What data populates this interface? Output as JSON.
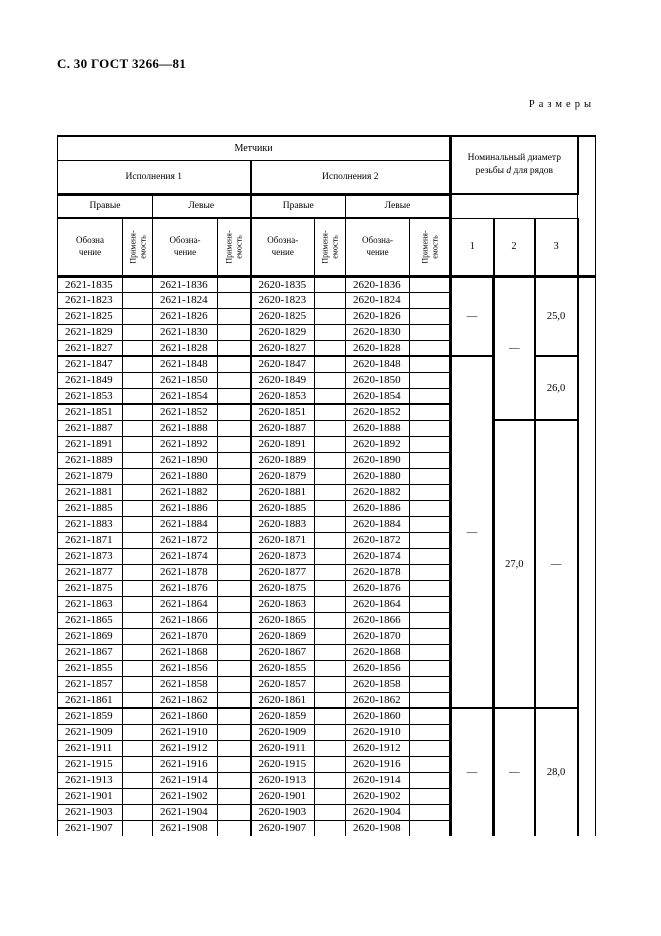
{
  "page": {
    "header": "С. 30 ГОСТ 3266—81",
    "sizes_label": "Размеры"
  },
  "table": {
    "header": {
      "metchiki": "Метчики",
      "ispolneniya_1": "Исполнения 1",
      "ispolneniya_2": "Исполнения 2",
      "pravye": "Правые",
      "levye": "Левые",
      "oboznachenie_first": "Обозна\nчение",
      "oboznachenie": "Обозна-\nчение",
      "primenyaemost": "Применя-\nемость",
      "nominal_prefix": "Номинальный диаметр резьбы ",
      "nominal_d": "d",
      "nominal_suffix": " для рядов",
      "row_numbers": [
        "1",
        "2",
        "3"
      ]
    },
    "rows": [
      [
        "2621-1835",
        "2621-1836",
        "2620-1835",
        "2620-1836"
      ],
      [
        "2621-1823",
        "2621-1824",
        "2620-1823",
        "2620-1824"
      ],
      [
        "2621-1825",
        "2621-1826",
        "2620-1825",
        "2620-1826"
      ],
      [
        "2621-1829",
        "2621-1830",
        "2620-1829",
        "2620-1830"
      ],
      [
        "2621-1827",
        "2621-1828",
        "2620-1827",
        "2620-1828"
      ],
      [
        "2621-1847",
        "2621-1848",
        "2620-1847",
        "2620-1848"
      ],
      [
        "2621-1849",
        "2621-1850",
        "2620-1849",
        "2620-1850"
      ],
      [
        "2621-1853",
        "2621-1854",
        "2620-1853",
        "2620-1854"
      ],
      [
        "2621-1851",
        "2621-1852",
        "2620-1851",
        "2620-1852"
      ],
      [
        "2621-1887",
        "2621-1888",
        "2620-1887",
        "2620-1888"
      ],
      [
        "2621-1891",
        "2621-1892",
        "2620-1891",
        "2620-1892"
      ],
      [
        "2621-1889",
        "2621-1890",
        "2620-1889",
        "2620-1890"
      ],
      [
        "2621-1879",
        "2621-1880",
        "2620-1879",
        "2620-1880"
      ],
      [
        "2621-1881",
        "2621-1882",
        "2620-1881",
        "2620-1882"
      ],
      [
        "2621-1885",
        "2621-1886",
        "2620-1885",
        "2620-1886"
      ],
      [
        "2621-1883",
        "2621-1884",
        "2620-1883",
        "2620-1884"
      ],
      [
        "2621-1871",
        "2621-1872",
        "2620-1871",
        "2620-1872"
      ],
      [
        "2621-1873",
        "2621-1874",
        "2620-1873",
        "2620-1874"
      ],
      [
        "2621-1877",
        "2621-1878",
        "2620-1877",
        "2620-1878"
      ],
      [
        "2621-1875",
        "2621-1876",
        "2620-1875",
        "2620-1876"
      ],
      [
        "2621-1863",
        "2621-1864",
        "2620-1863",
        "2620-1864"
      ],
      [
        "2621-1865",
        "2621-1866",
        "2620-1865",
        "2620-1866"
      ],
      [
        "2621-1869",
        "2621-1870",
        "2620-1869",
        "2620-1870"
      ],
      [
        "2621-1867",
        "2621-1868",
        "2620-1867",
        "2620-1868"
      ],
      [
        "2621-1855",
        "2621-1856",
        "2620-1855",
        "2620-1856"
      ],
      [
        "2621-1857",
        "2621-1858",
        "2620-1857",
        "2620-1858"
      ],
      [
        "2621-1861",
        "2621-1862",
        "2620-1861",
        "2620-1862"
      ],
      [
        "2621-1859",
        "2621-1860",
        "2620-1859",
        "2620-1860"
      ],
      [
        "2621-1909",
        "2621-1910",
        "2620-1909",
        "2620-1910"
      ],
      [
        "2621-1911",
        "2621-1912",
        "2620-1911",
        "2620-1912"
      ],
      [
        "2621-1915",
        "2621-1916",
        "2620-1915",
        "2620-1916"
      ],
      [
        "2621-1913",
        "2621-1914",
        "2620-1913",
        "2620-1914"
      ],
      [
        "2621-1901",
        "2621-1902",
        "2620-1901",
        "2620-1902"
      ],
      [
        "2621-1903",
        "2621-1904",
        "2620-1903",
        "2620-1904"
      ],
      [
        "2621-1907",
        "2621-1908",
        "2620-1907",
        "2620-1908"
      ]
    ],
    "diameter_columns": {
      "col1": [
        {
          "row": 0,
          "span": 5,
          "label": "—"
        },
        {
          "row": 5,
          "span": 22,
          "label": "—"
        },
        {
          "row": 27,
          "span": 8,
          "label": "—"
        }
      ],
      "col2": [
        {
          "row": 0,
          "span": 9,
          "label": "—"
        },
        {
          "row": 9,
          "span": 18,
          "label": "27,0"
        },
        {
          "row": 27,
          "span": 8,
          "label": "—"
        }
      ],
      "col3": [
        {
          "row": 0,
          "span": 5,
          "label": "25,0"
        },
        {
          "row": 5,
          "span": 4,
          "label": "26,0"
        },
        {
          "row": 9,
          "span": 18,
          "label": "—"
        },
        {
          "row": 27,
          "span": 8,
          "label": "28,0"
        }
      ]
    }
  }
}
